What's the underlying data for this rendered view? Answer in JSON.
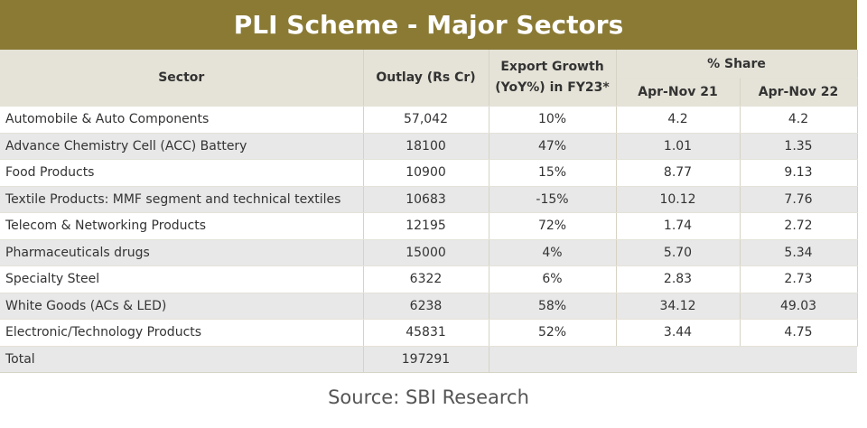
{
  "title": "PLI Scheme - Major Sectors",
  "headers": {
    "sector": "Sector",
    "outlay": "Outlay (Rs Cr)",
    "export_growth_line1": "Export Growth",
    "export_growth_line2": "(YoY%) in FY23*",
    "share": "% Share",
    "apr_nov_21": "Apr-Nov 21",
    "apr_nov_22": "Apr-Nov 22"
  },
  "rows": [
    {
      "sector": "Automobile & Auto Components",
      "outlay": "57,042",
      "growth": "10%",
      "share21": "4.2",
      "share22": "4.2"
    },
    {
      "sector": "Advance Chemistry Cell (ACC) Battery",
      "outlay": "18100",
      "growth": "47%",
      "share21": "1.01",
      "share22": "1.35"
    },
    {
      "sector": "Food Products",
      "outlay": "10900",
      "growth": "15%",
      "share21": "8.77",
      "share22": "9.13"
    },
    {
      "sector": "Textile Products: MMF segment and technical textiles",
      "outlay": "10683",
      "growth": "-15%",
      "share21": "10.12",
      "share22": "7.76"
    },
    {
      "sector": "Telecom & Networking Products",
      "outlay": "12195",
      "growth": "72%",
      "share21": "1.74",
      "share22": "2.72"
    },
    {
      "sector": "Pharmaceuticals drugs",
      "outlay": "15000",
      "growth": "4%",
      "share21": "5.70",
      "share22": "5.34"
    },
    {
      "sector": "Specialty Steel",
      "outlay": "6322",
      "growth": "6%",
      "share21": "2.83",
      "share22": "2.73"
    },
    {
      "sector": "White Goods (ACs & LED)",
      "outlay": "6238",
      "growth": "58%",
      "share21": "34.12",
      "share22": "49.03"
    },
    {
      "sector": "Electronic/Technology Products",
      "outlay": "45831",
      "growth": "52%",
      "share21": "3.44",
      "share22": "4.75"
    }
  ],
  "total": {
    "label": "Total",
    "outlay": "197291"
  },
  "source": "Source: SBI Research"
}
